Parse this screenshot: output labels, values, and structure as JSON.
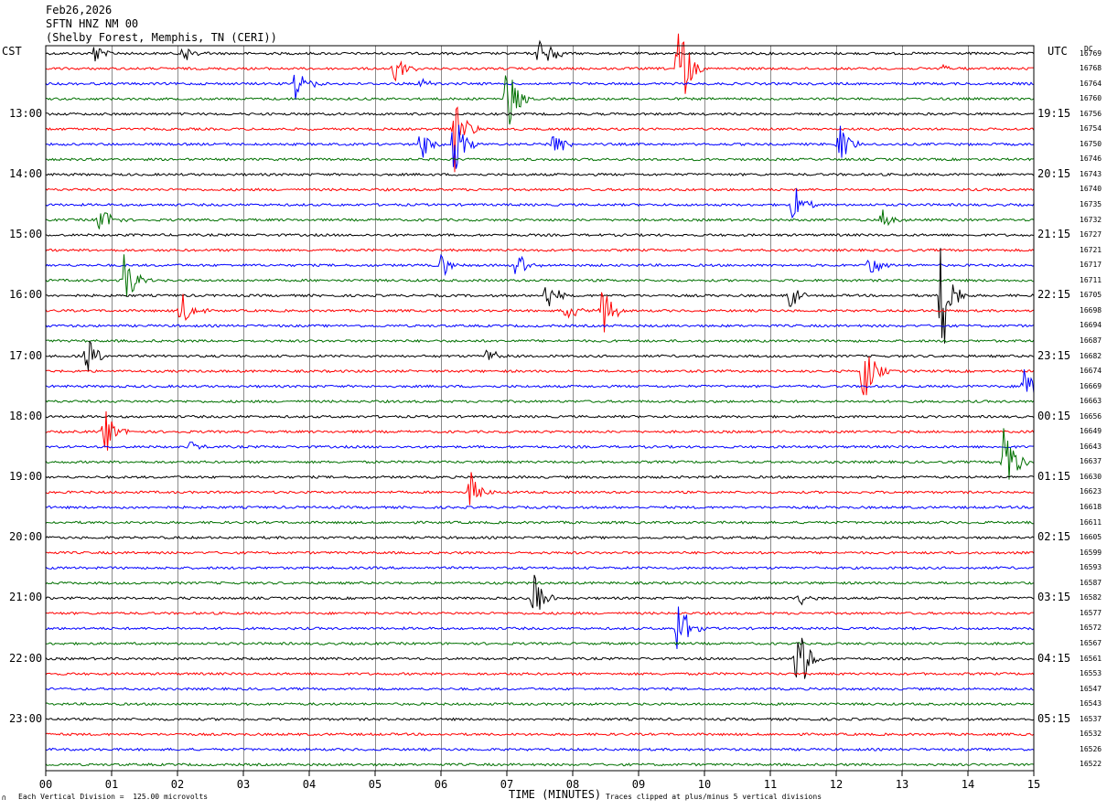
{
  "header": {
    "date": "Feb26,2026",
    "station": "SFTN HNZ NM 00",
    "location": "(Shelby Forest, Memphis, TN (CERI))"
  },
  "left_timezone": "CST",
  "right_timezone": "UTC",
  "dc_label": "DC",
  "footer": {
    "scale_note": "Each Vertical Division =  125.00 microvolts",
    "clip_note": "Traces clipped at plus/minus 5 vertical divisions",
    "logo_mark": "∩"
  },
  "chart_data": {
    "type": "line",
    "title": "Feb26,2026",
    "xlabel": "TIME (MINUTES)",
    "ylabel": "",
    "xlim": [
      0,
      15
    ],
    "x_ticks": [
      "00",
      "01",
      "02",
      "03",
      "04",
      "05",
      "06",
      "07",
      "08",
      "09",
      "10",
      "11",
      "12",
      "13",
      "14",
      "15"
    ],
    "trace_minutes": 15,
    "trace_count": 48,
    "trace_colors": [
      "#000000",
      "#ff0000",
      "#0000ff",
      "#007000"
    ],
    "left_time_labels": [
      {
        "trace": 4,
        "text": "13:00"
      },
      {
        "trace": 8,
        "text": "14:00"
      },
      {
        "trace": 12,
        "text": "15:00"
      },
      {
        "trace": 16,
        "text": "16:00"
      },
      {
        "trace": 20,
        "text": "17:00"
      },
      {
        "trace": 24,
        "text": "18:00"
      },
      {
        "trace": 28,
        "text": "19:00"
      },
      {
        "trace": 32,
        "text": "20:00"
      },
      {
        "trace": 36,
        "text": "21:00"
      },
      {
        "trace": 40,
        "text": "22:00"
      },
      {
        "trace": 44,
        "text": "23:00"
      }
    ],
    "right_time_labels": [
      {
        "trace": 4,
        "text": "19:15"
      },
      {
        "trace": 8,
        "text": "20:15"
      },
      {
        "trace": 12,
        "text": "21:15"
      },
      {
        "trace": 16,
        "text": "22:15"
      },
      {
        "trace": 20,
        "text": "23:15"
      },
      {
        "trace": 24,
        "text": "00:15"
      },
      {
        "trace": 28,
        "text": "01:15"
      },
      {
        "trace": 32,
        "text": "02:15"
      },
      {
        "trace": 36,
        "text": "03:15"
      },
      {
        "trace": 40,
        "text": "04:15"
      },
      {
        "trace": 44,
        "text": "05:15"
      }
    ],
    "dc_offsets": [
      "16769",
      "16768",
      "16764",
      "16760",
      "16756",
      "16754",
      "16750",
      "16746",
      "16743",
      "16740",
      "16735",
      "16732",
      "16727",
      "16721",
      "16717",
      "16711",
      "16705",
      "16698",
      "16694",
      "16687",
      "16682",
      "16674",
      "16669",
      "16663",
      "16656",
      "16649",
      "16643",
      "16637",
      "16630",
      "16623",
      "16618",
      "16611",
      "16605",
      "16599",
      "16593",
      "16587",
      "16582",
      "16577",
      "16572",
      "16567",
      "16561",
      "16553",
      "16547",
      "16543",
      "16537",
      "16532",
      "16526",
      "16522"
    ],
    "events": [
      {
        "trace": 0,
        "minute": 0.72,
        "amp": 0.9
      },
      {
        "trace": 0,
        "minute": 2.1,
        "amp": 0.7
      },
      {
        "trace": 0,
        "minute": 7.5,
        "amp": 2.2
      },
      {
        "trace": 1,
        "minute": 5.3,
        "amp": 1.1
      },
      {
        "trace": 1,
        "minute": 9.6,
        "amp": 4.0
      },
      {
        "trace": 1,
        "minute": 13.6,
        "amp": 0.4
      },
      {
        "trace": 2,
        "minute": 3.8,
        "amp": 1.6
      },
      {
        "trace": 2,
        "minute": 5.7,
        "amp": 0.4
      },
      {
        "trace": 3,
        "minute": 7.0,
        "amp": 2.6
      },
      {
        "trace": 5,
        "minute": 6.2,
        "amp": 3.0
      },
      {
        "trace": 6,
        "minute": 5.7,
        "amp": 1.2
      },
      {
        "trace": 6,
        "minute": 6.2,
        "amp": 2.4
      },
      {
        "trace": 6,
        "minute": 7.7,
        "amp": 1.4
      },
      {
        "trace": 6,
        "minute": 12.05,
        "amp": 1.6
      },
      {
        "trace": 10,
        "minute": 11.35,
        "amp": 1.6
      },
      {
        "trace": 11,
        "minute": 0.82,
        "amp": 1.2
      },
      {
        "trace": 11,
        "minute": 12.7,
        "amp": 0.9
      },
      {
        "trace": 14,
        "minute": 6.0,
        "amp": 0.9
      },
      {
        "trace": 14,
        "minute": 7.15,
        "amp": 1.0
      },
      {
        "trace": 14,
        "minute": 12.5,
        "amp": 1.2
      },
      {
        "trace": 15,
        "minute": 1.2,
        "amp": 2.2
      },
      {
        "trace": 16,
        "minute": 7.6,
        "amp": 1.3
      },
      {
        "trace": 16,
        "minute": 11.3,
        "amp": 0.9
      },
      {
        "trace": 16,
        "minute": 13.6,
        "amp": 5.0
      },
      {
        "trace": 17,
        "minute": 2.05,
        "amp": 1.5
      },
      {
        "trace": 17,
        "minute": 7.9,
        "amp": 0.9
      },
      {
        "trace": 17,
        "minute": 8.45,
        "amp": 2.2
      },
      {
        "trace": 20,
        "minute": 0.62,
        "amp": 1.5
      },
      {
        "trace": 20,
        "minute": 6.7,
        "amp": 0.7
      },
      {
        "trace": 21,
        "minute": 12.4,
        "amp": 3.0
      },
      {
        "trace": 22,
        "minute": 14.85,
        "amp": 1.6
      },
      {
        "trace": 25,
        "minute": 0.9,
        "amp": 1.7
      },
      {
        "trace": 26,
        "minute": 2.2,
        "amp": 0.4
      },
      {
        "trace": 27,
        "minute": 14.55,
        "amp": 3.5
      },
      {
        "trace": 29,
        "minute": 6.45,
        "amp": 1.6
      },
      {
        "trace": 36,
        "minute": 7.4,
        "amp": 1.9
      },
      {
        "trace": 36,
        "minute": 11.45,
        "amp": 0.6
      },
      {
        "trace": 38,
        "minute": 9.6,
        "amp": 2.6
      },
      {
        "trace": 40,
        "minute": 11.4,
        "amp": 3.6
      }
    ]
  }
}
